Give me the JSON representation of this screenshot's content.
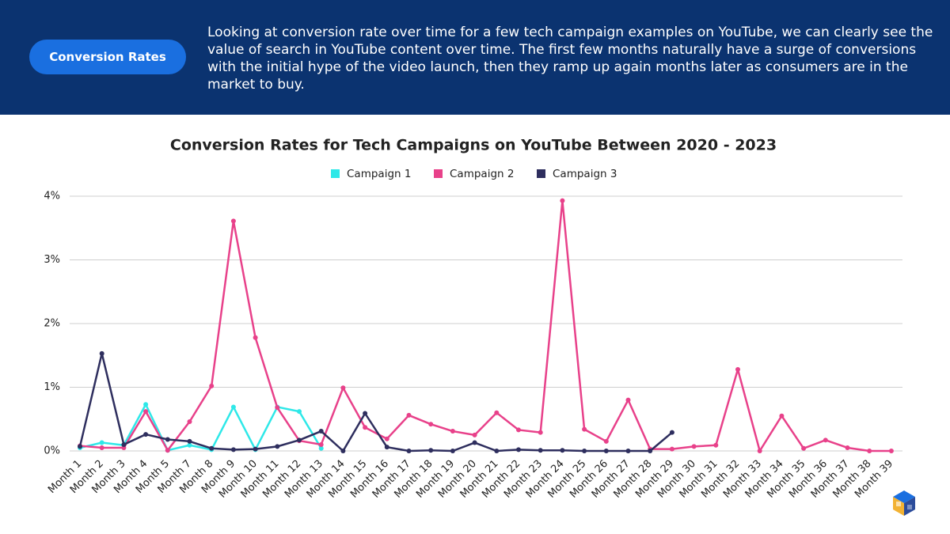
{
  "header": {
    "button": "Conversion Rates",
    "text": "Looking at conversion rate over time for a few tech campaign examples on YouTube, we can clearly see the value of search in YouTube content over time.  The first few months naturally have a surge of conversions with the initial hype of the video launch, then they ramp up again months later as consumers are in the market to buy."
  },
  "chart_data": {
    "type": "line",
    "title": "Conversion Rates for Tech Campaigns on YouTube Between 2020 - 2023",
    "categories": [
      "Month 1",
      "Month 2",
      "Month 3",
      "Month 4",
      "Month 5",
      "Month 7",
      "Month 8",
      "Month 9",
      "Month 10",
      "Month 11",
      "Month 12",
      "Month 13",
      "Month 14",
      "Month 15",
      "Month 16",
      "Month 17",
      "Month 18",
      "Month 19",
      "Month 20",
      "Month 21",
      "Month 22",
      "Month 23",
      "Month 24",
      "Month 25",
      "Month 26",
      "Month 27",
      "Month 28",
      "Month 29",
      "Month 30",
      "Month 31",
      "Month 32",
      "Month 33",
      "Month 34",
      "Month 35",
      "Month 36",
      "Month 37",
      "Month 38",
      "Month 39"
    ],
    "series": [
      {
        "name": "Campaign 1",
        "color": "#2ee8e8",
        "values": [
          0.05,
          0.13,
          0.09,
          0.73,
          0.01,
          0.09,
          0.02,
          0.69,
          0.02,
          0.69,
          0.62,
          0.04,
          null,
          null,
          null,
          null,
          null,
          null,
          null,
          null,
          null,
          null,
          null,
          null,
          null,
          null,
          null,
          null,
          null,
          null,
          null,
          null,
          null,
          null,
          null,
          null,
          null,
          null
        ]
      },
      {
        "name": "Campaign 2",
        "color": "#e8418a",
        "values": [
          0.08,
          0.05,
          0.05,
          0.62,
          0.01,
          0.46,
          1.02,
          3.61,
          1.78,
          0.68,
          0.16,
          0.1,
          0.99,
          0.37,
          0.19,
          0.56,
          0.42,
          0.31,
          0.25,
          0.6,
          0.33,
          0.29,
          3.93,
          0.34,
          0.15,
          0.8,
          0.03,
          0.03,
          0.07,
          0.09,
          1.28,
          0.0,
          0.55,
          0.04,
          0.17,
          0.05,
          0.0,
          0.0
        ]
      },
      {
        "name": "Campaign 3",
        "color": "#2e2e5e",
        "values": [
          0.07,
          1.53,
          0.1,
          0.26,
          0.18,
          0.15,
          0.04,
          0.02,
          0.03,
          0.07,
          0.17,
          0.31,
          0.0,
          0.59,
          0.06,
          0.0,
          0.01,
          0.0,
          0.13,
          0.0,
          0.02,
          0.01,
          0.01,
          0.0,
          0.0,
          0.0,
          0.0,
          0.29,
          null,
          null,
          null,
          null,
          null,
          null,
          null,
          null,
          null,
          null
        ]
      }
    ],
    "ylim": [
      0,
      4
    ],
    "yticks": [
      {
        "value": 0,
        "label": "0%"
      },
      {
        "value": 1,
        "label": "1%"
      },
      {
        "value": 2,
        "label": "2%"
      },
      {
        "value": 3,
        "label": "3%"
      },
      {
        "value": 4,
        "label": "4%"
      }
    ],
    "grid": true,
    "legend": "top"
  }
}
